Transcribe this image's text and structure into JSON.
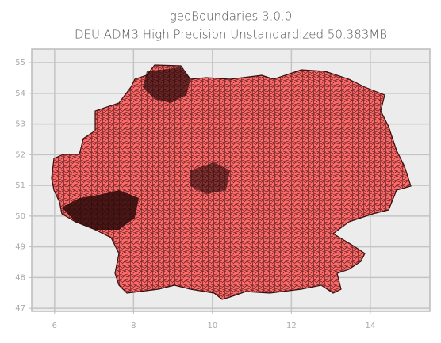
{
  "chart_data": {
    "type": "map",
    "title": "geoBoundaries 3.0.0",
    "subtitle": "DEU ADM3 High Precision Unstandardized 50.383MB",
    "xlim": [
      5.42,
      15.51
    ],
    "ylim": [
      46.9,
      55.44
    ],
    "xticks": [
      6,
      8,
      10,
      12,
      14
    ],
    "yticks": [
      47,
      48,
      49,
      50,
      51,
      52,
      53,
      54,
      55
    ],
    "grid": true,
    "color": "#ff6b6b"
  }
}
